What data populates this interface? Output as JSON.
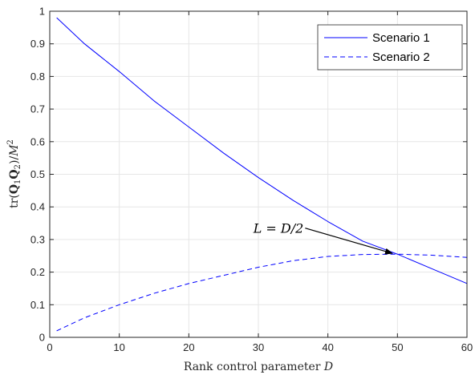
{
  "chart_data": {
    "type": "line",
    "xlabel": "Rank control parameter D",
    "ylabel": "tr(Q₁Q₂)/M²",
    "xlim": [
      0,
      60
    ],
    "ylim": [
      0,
      1
    ],
    "xticks": [
      0,
      10,
      20,
      30,
      40,
      50,
      60
    ],
    "yticks": [
      0,
      0.1,
      0.2,
      0.3,
      0.4,
      0.5,
      0.6,
      0.7,
      0.8,
      0.9,
      1
    ],
    "grid": true,
    "legend_position": "top-right",
    "series": [
      {
        "name": "Scenario 1",
        "style": "solid",
        "color": "#0000ff",
        "x": [
          1,
          5,
          10,
          15,
          20,
          25,
          30,
          35,
          40,
          45,
          50,
          55,
          60
        ],
        "y": [
          0.98,
          0.9,
          0.815,
          0.725,
          0.645,
          0.565,
          0.49,
          0.42,
          0.355,
          0.295,
          0.255,
          0.21,
          0.165
        ]
      },
      {
        "name": "Scenario 2",
        "style": "dashed",
        "color": "#0000ff",
        "x": [
          1,
          5,
          10,
          15,
          20,
          25,
          30,
          35,
          40,
          45,
          50,
          55,
          60
        ],
        "y": [
          0.02,
          0.06,
          0.1,
          0.135,
          0.165,
          0.19,
          0.215,
          0.235,
          0.248,
          0.254,
          0.255,
          0.252,
          0.245
        ]
      }
    ],
    "annotation": {
      "text": "L = D/2",
      "point": [
        49.5,
        0.255
      ],
      "text_anchor": [
        36.5,
        0.33
      ]
    }
  }
}
